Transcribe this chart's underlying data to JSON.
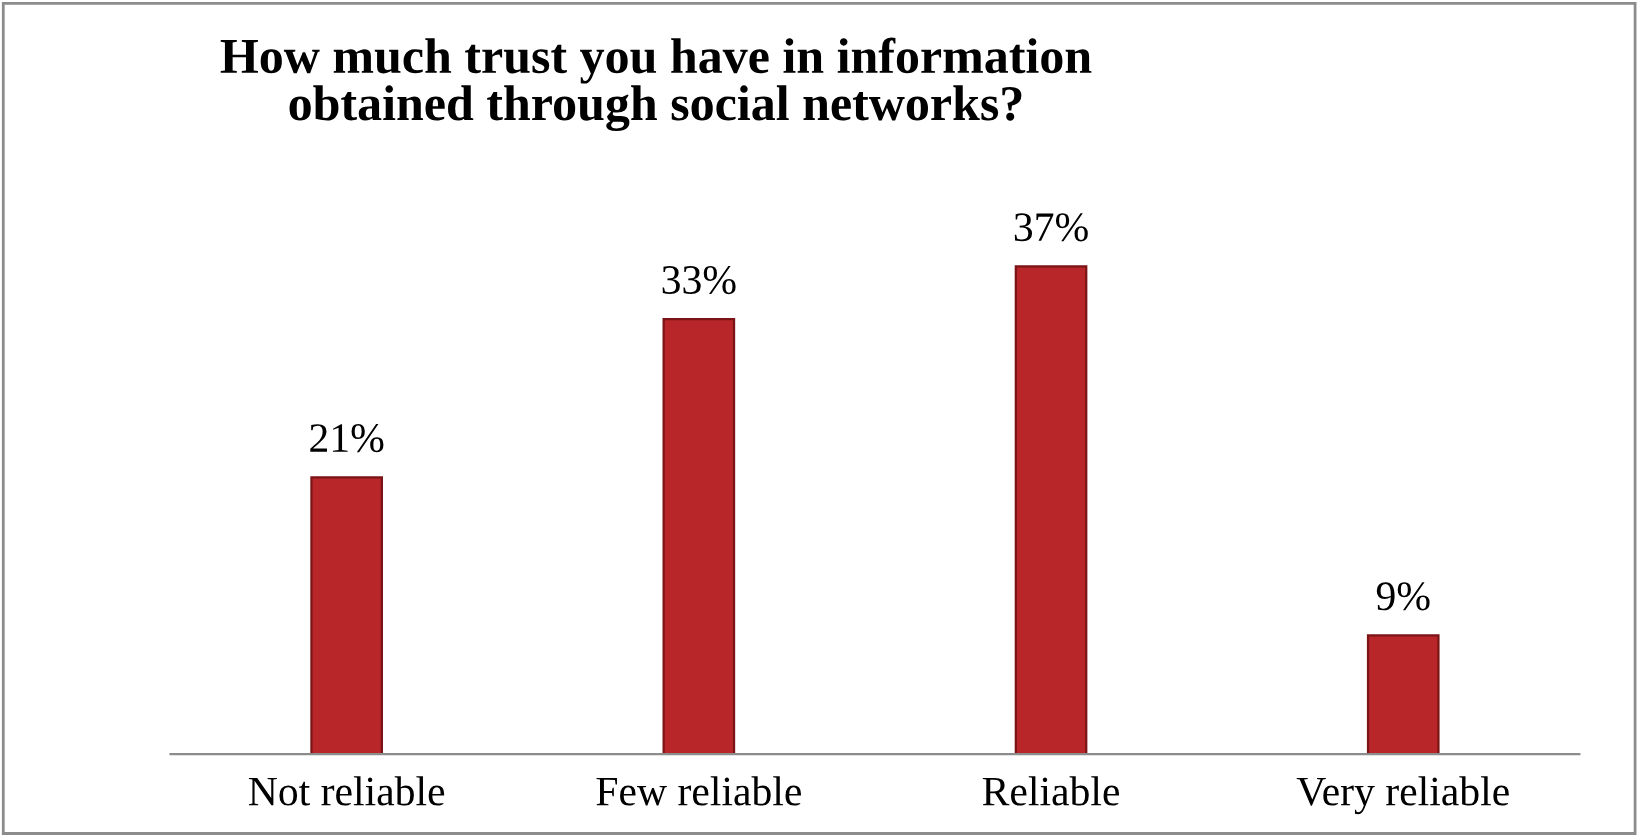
{
  "chart_data": {
    "type": "bar",
    "title": "How much trust you have in information\nobtained through social networks?",
    "categories": [
      "Not reliable",
      "Few reliable",
      "Reliable",
      "Very reliable"
    ],
    "values": [
      21,
      33,
      37,
      9
    ],
    "value_labels": [
      "21%",
      "33%",
      "37%",
      "9%"
    ],
    "color": "#b8262a"
  }
}
